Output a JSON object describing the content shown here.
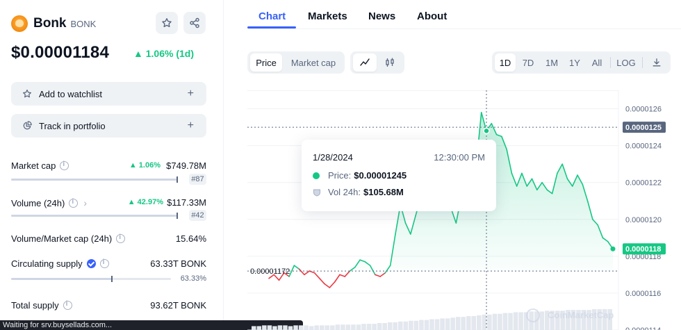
{
  "coin": {
    "name": "Bonk",
    "symbol": "BONK",
    "price": "$0.00001184",
    "change": "▲ 1.06% (1d)"
  },
  "actions": {
    "watchlist": "Add to watchlist",
    "portfolio": "Track in portfolio",
    "plus": "+"
  },
  "stats": {
    "market_cap": {
      "label": "Market cap",
      "change": "▲ 1.06%",
      "value": "$749.78M",
      "rank": "#87"
    },
    "volume": {
      "label": "Volume (24h)",
      "change": "▲ 42.97%",
      "value": "$117.33M",
      "rank": "#42"
    },
    "vol_mcap": {
      "label": "Volume/Market cap (24h)",
      "value": "15.64%"
    },
    "circulating": {
      "label": "Circulating supply",
      "value": "63.33T BONK",
      "percent": "63.33%",
      "fill": 0.6333
    },
    "total": {
      "label": "Total supply",
      "value": "93.62T BONK"
    }
  },
  "status_text": "Waiting for srv.buysellads.com...",
  "tabs": [
    "Chart",
    "Markets",
    "News",
    "About"
  ],
  "chart_controls": {
    "type_toggle": [
      "Price",
      "Market cap"
    ],
    "ranges": [
      "1D",
      "7D",
      "1M",
      "1Y",
      "All"
    ],
    "log": "LOG"
  },
  "tooltip": {
    "date": "1/28/2024",
    "time": "12:30:00 PM",
    "price_label": "Price:",
    "price_value": "$0.00001245",
    "volume_label": "Vol 24h:",
    "volume_value": "$105.68M"
  },
  "chart_data": {
    "type": "line",
    "y_ticks": [
      "0.0000126",
      "0.0000124",
      "0.0000122",
      "0.0000120",
      "0.0000118",
      "0.0000116",
      "0.0000114"
    ],
    "ylim": [
      1.14e-05,
      1.27e-05
    ],
    "reference_label": "0.00001172",
    "reference_value": 1.172e-05,
    "hover_label": "0.0000125",
    "hover_value": 1.25e-05,
    "current_label": "0.0000118",
    "current_value": 1.184e-05,
    "colors": {
      "up": "#16c784",
      "down": "#ea3943",
      "hover": "#58667e"
    },
    "watermark": "CoinMarketCap",
    "values": [
      1.168e-05,
      1.17e-05,
      1.167e-05,
      1.171e-05,
      1.169e-05,
      1.175e-05,
      1.173e-05,
      1.17e-05,
      1.172e-05,
      1.171e-05,
      1.168e-05,
      1.165e-05,
      1.163e-05,
      1.166e-05,
      1.17e-05,
      1.169e-05,
      1.172e-05,
      1.174e-05,
      1.178e-05,
      1.177e-05,
      1.175e-05,
      1.17e-05,
      1.169e-05,
      1.171e-05,
      1.175e-05,
      1.192e-05,
      1.208e-05,
      1.198e-05,
      1.192e-05,
      1.202e-05,
      1.212e-05,
      1.22e-05,
      1.215e-05,
      1.208e-05,
      1.23e-05,
      1.222e-05,
      1.206e-05,
      1.198e-05,
      1.212e-05,
      1.225e-05,
      1.22e-05,
      1.23e-05,
      1.258e-05,
      1.248e-05,
      1.252e-05,
      1.246e-05,
      1.245e-05,
      1.238e-05,
      1.225e-05,
      1.218e-05,
      1.225e-05,
      1.218e-05,
      1.222e-05,
      1.216e-05,
      1.22e-05,
      1.216e-05,
      1.214e-05,
      1.225e-05,
      1.23e-05,
      1.222e-05,
      1.218e-05,
      1.224e-05,
      1.219e-05,
      1.21e-05,
      1.2e-05,
      1.197e-05,
      1.19e-05,
      1.188e-05,
      1.184e-05
    ],
    "volume": [
      5,
      5,
      6,
      6,
      5,
      6,
      6,
      5,
      6,
      6,
      6,
      5,
      6,
      6,
      6,
      6,
      7,
      7,
      7,
      7,
      7,
      8,
      8,
      8,
      9,
      9,
      10,
      10,
      11,
      11,
      12,
      12,
      13,
      13,
      14,
      14,
      15,
      15,
      16,
      17,
      17,
      18,
      18,
      19,
      20,
      20,
      21,
      21,
      22,
      22,
      23,
      23,
      23,
      24,
      24,
      24,
      25,
      25,
      25,
      25,
      26,
      26,
      26,
      26,
      26,
      27,
      27,
      27,
      27
    ]
  }
}
